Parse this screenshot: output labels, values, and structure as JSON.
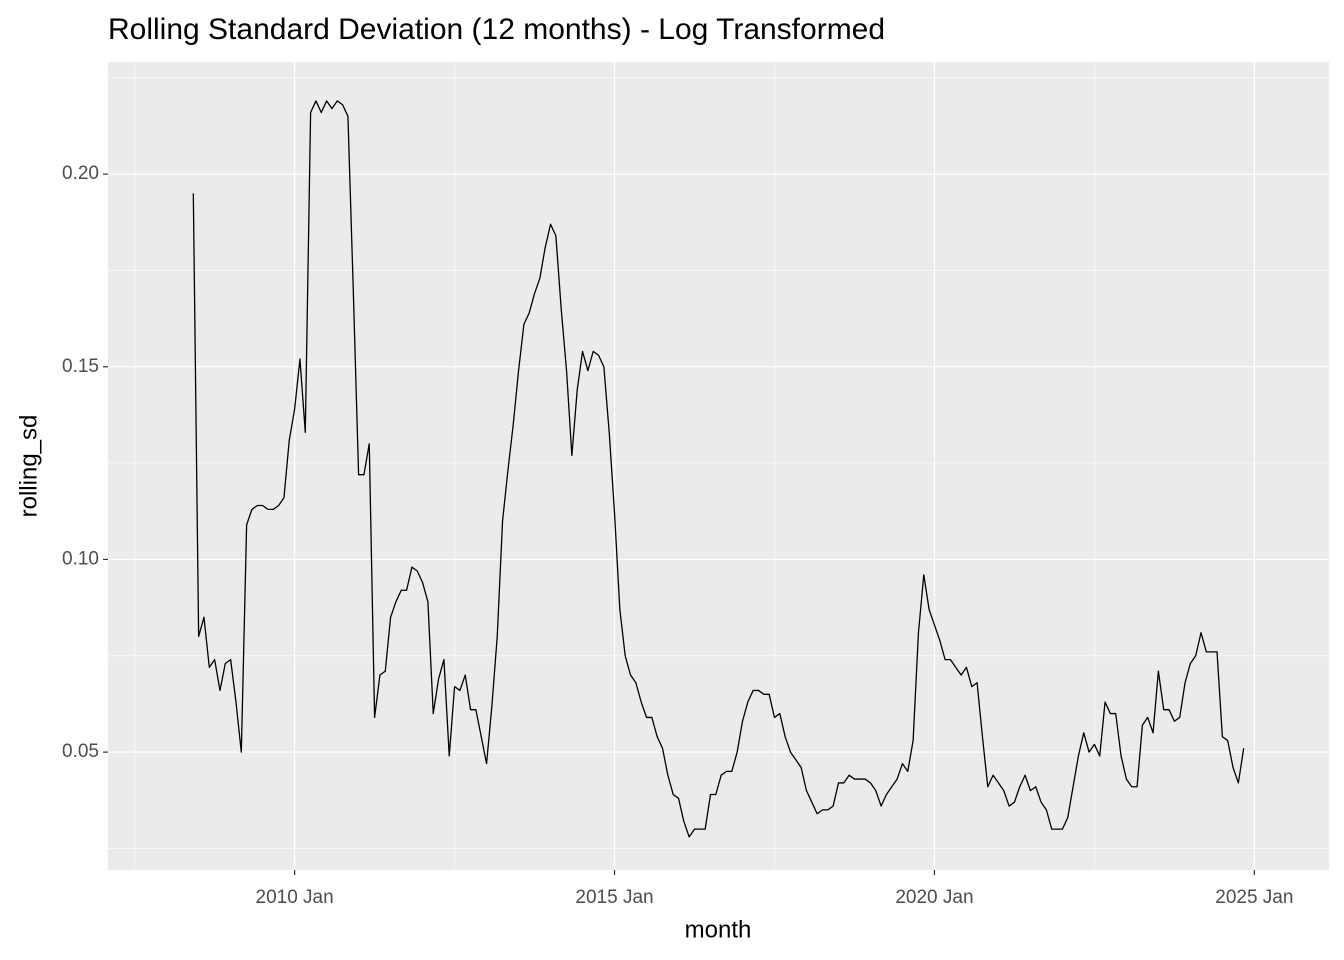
{
  "chart_data": {
    "type": "line",
    "title": "Rolling Standard Deviation (12 months) - Log Transformed",
    "x_label": "month",
    "y_label": "rolling_sd",
    "color": "#000000",
    "grid": true,
    "xlim": [
      "2007-02",
      "2026-03"
    ],
    "xticks": [
      {
        "value": "2010-01",
        "label": "2010 Jan"
      },
      {
        "value": "2015-01",
        "label": "2015 Jan"
      },
      {
        "value": "2020-01",
        "label": "2020 Jan"
      },
      {
        "value": "2025-01",
        "label": "2025 Jan"
      }
    ],
    "ylim": [
      0.0194,
      0.2291
    ],
    "yticks": [
      0.05,
      {
        "value": 0.1,
        "label": "0.10"
      },
      0.15,
      {
        "value": 0.2,
        "label": "0.20"
      }
    ],
    "x": [
      "2008-06",
      "2008-07",
      "2008-08",
      "2008-09",
      "2008-10",
      "2008-11",
      "2008-12",
      "2009-01",
      "2009-02",
      "2009-03",
      "2009-04",
      "2009-05",
      "2009-06",
      "2009-07",
      "2009-08",
      "2009-09",
      "2009-10",
      "2009-11",
      "2009-12",
      "2010-01",
      "2010-02",
      "2010-03",
      "2010-04",
      "2010-05",
      "2010-06",
      "2010-07",
      "2010-08",
      "2010-09",
      "2010-10",
      "2010-11",
      "2010-12",
      "2011-01",
      "2011-02",
      "2011-03",
      "2011-04",
      "2011-05",
      "2011-06",
      "2011-07",
      "2011-08",
      "2011-09",
      "2011-10",
      "2011-11",
      "2011-12",
      "2012-01",
      "2012-02",
      "2012-03",
      "2012-04",
      "2012-05",
      "2012-06",
      "2012-07",
      "2012-08",
      "2012-09",
      "2012-10",
      "2012-11",
      "2012-12",
      "2013-01",
      "2013-02",
      "2013-03",
      "2013-04",
      "2013-05",
      "2013-06",
      "2013-07",
      "2013-08",
      "2013-09",
      "2013-10",
      "2013-11",
      "2013-12",
      "2014-01",
      "2014-02",
      "2014-03",
      "2014-04",
      "2014-05",
      "2014-06",
      "2014-07",
      "2014-08",
      "2014-09",
      "2014-10",
      "2014-11",
      "2014-12",
      "2015-01",
      "2015-02",
      "2015-03",
      "2015-04",
      "2015-05",
      "2015-06",
      "2015-07",
      "2015-08",
      "2015-09",
      "2015-10",
      "2015-11",
      "2015-12",
      "2016-01",
      "2016-02",
      "2016-03",
      "2016-04",
      "2016-05",
      "2016-06",
      "2016-07",
      "2016-08",
      "2016-09",
      "2016-10",
      "2016-11",
      "2016-12",
      "2017-01",
      "2017-02",
      "2017-03",
      "2017-04",
      "2017-05",
      "2017-06",
      "2017-07",
      "2017-08",
      "2017-09",
      "2017-10",
      "2017-11",
      "2017-12",
      "2018-01",
      "2018-02",
      "2018-03",
      "2018-04",
      "2018-05",
      "2018-06",
      "2018-07",
      "2018-08",
      "2018-09",
      "2018-10",
      "2018-11",
      "2018-12",
      "2019-01",
      "2019-02",
      "2019-03",
      "2019-04",
      "2019-05",
      "2019-06",
      "2019-07",
      "2019-08",
      "2019-09",
      "2019-10",
      "2019-11",
      "2019-12",
      "2020-01",
      "2020-02",
      "2020-03",
      "2020-04",
      "2020-05",
      "2020-06",
      "2020-07",
      "2020-08",
      "2020-09",
      "2020-10",
      "2020-11",
      "2020-12",
      "2021-01",
      "2021-02",
      "2021-03",
      "2021-04",
      "2021-05",
      "2021-06",
      "2021-07",
      "2021-08",
      "2021-09",
      "2021-10",
      "2021-11",
      "2021-12",
      "2022-01",
      "2022-02",
      "2022-03",
      "2022-04",
      "2022-05",
      "2022-06",
      "2022-07",
      "2022-08",
      "2022-09",
      "2022-10",
      "2022-11",
      "2022-12",
      "2023-01",
      "2023-02",
      "2023-03",
      "2023-04",
      "2023-05",
      "2023-06",
      "2023-07",
      "2023-08",
      "2023-09",
      "2023-10",
      "2023-11",
      "2023-12",
      "2024-01",
      "2024-02",
      "2024-03",
      "2024-04",
      "2024-05",
      "2024-06",
      "2024-07",
      "2024-08",
      "2024-09",
      "2024-10",
      "2024-11"
    ],
    "values": [
      0.195,
      0.08,
      0.085,
      0.072,
      0.074,
      0.066,
      0.073,
      0.074,
      0.063,
      0.05,
      0.109,
      0.113,
      0.114,
      0.114,
      0.113,
      0.113,
      0.114,
      0.116,
      0.131,
      0.139,
      0.152,
      0.133,
      0.216,
      0.219,
      0.216,
      0.219,
      0.217,
      0.219,
      0.218,
      0.215,
      0.17,
      0.122,
      0.122,
      0.13,
      0.059,
      0.07,
      0.071,
      0.085,
      0.089,
      0.092,
      0.092,
      0.098,
      0.097,
      0.094,
      0.089,
      0.06,
      0.069,
      0.074,
      0.049,
      0.067,
      0.066,
      0.07,
      0.061,
      0.061,
      0.054,
      0.047,
      0.062,
      0.08,
      0.11,
      0.123,
      0.135,
      0.149,
      0.161,
      0.164,
      0.169,
      0.173,
      0.181,
      0.187,
      0.184,
      0.165,
      0.149,
      0.127,
      0.144,
      0.154,
      0.149,
      0.154,
      0.153,
      0.15,
      0.133,
      0.112,
      0.087,
      0.075,
      0.07,
      0.068,
      0.063,
      0.059,
      0.059,
      0.054,
      0.051,
      0.044,
      0.039,
      0.038,
      0.032,
      0.028,
      0.03,
      0.03,
      0.03,
      0.039,
      0.039,
      0.044,
      0.045,
      0.045,
      0.05,
      0.058,
      0.063,
      0.066,
      0.066,
      0.065,
      0.065,
      0.059,
      0.06,
      0.054,
      0.05,
      0.048,
      0.046,
      0.04,
      0.037,
      0.034,
      0.035,
      0.035,
      0.036,
      0.042,
      0.042,
      0.044,
      0.043,
      0.043,
      0.043,
      0.042,
      0.04,
      0.036,
      0.039,
      0.041,
      0.043,
      0.047,
      0.045,
      0.053,
      0.081,
      0.096,
      0.087,
      0.083,
      0.079,
      0.074,
      0.074,
      0.072,
      0.07,
      0.072,
      0.067,
      0.068,
      0.054,
      0.041,
      0.044,
      0.042,
      0.04,
      0.036,
      0.037,
      0.041,
      0.044,
      0.04,
      0.041,
      0.037,
      0.035,
      0.03,
      0.03,
      0.03,
      0.033,
      0.041,
      0.049,
      0.055,
      0.05,
      0.052,
      0.049,
      0.063,
      0.06,
      0.06,
      0.049,
      0.043,
      0.041,
      0.041,
      0.057,
      0.059,
      0.055,
      0.071,
      0.061,
      0.061,
      0.058,
      0.059,
      0.068,
      0.073,
      0.075,
      0.081,
      0.076,
      0.076,
      0.076,
      0.054,
      0.053,
      0.046,
      0.042,
      0.051
    ]
  }
}
